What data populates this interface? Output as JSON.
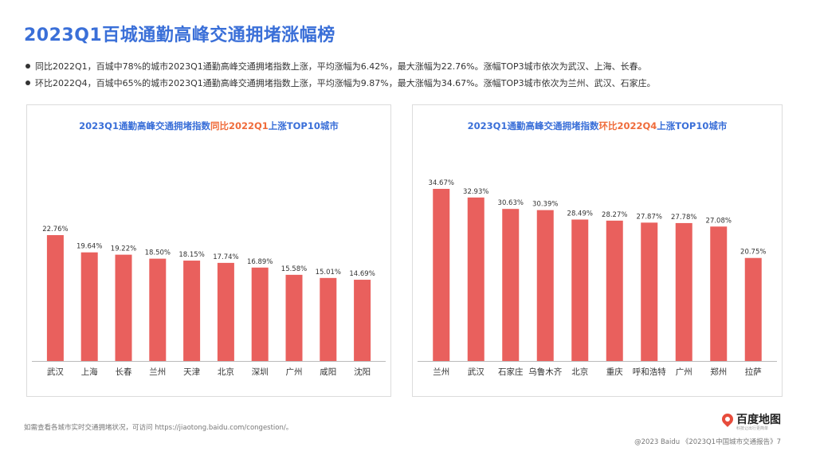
{
  "page": {
    "title": "2023Q1百城通勤高峰交通拥堵涨幅榜",
    "bullets": [
      "同比2022Q1，百城中78%的城市2023Q1通勤高峰交通拥堵指数上涨，平均涨幅为6.42%，最大涨幅为22.76%。涨幅TOP3城市依次为武汉、上海、长春。",
      "环比2022Q4，百城中65%的城市2023Q1通勤高峰交通拥堵指数上涨，平均涨幅为9.87%，最大涨幅为34.67%。涨幅TOP3城市依次为兰州、武汉、石家庄。"
    ],
    "footnote": "如需查看各城市实时交通拥堵状况，可访问 https://jiaotong.baidu.com/congestion/。",
    "copyright": "@2023 Baidu 《2023Q1中国城市交通报告》7",
    "logo": {
      "name": "百度地图",
      "tagline": "科技让出行更简单"
    },
    "colors": {
      "title": "#3a6fd8",
      "highlight": "#ef6b3a",
      "bar": "#e9605d"
    }
  },
  "chart_data": [
    {
      "type": "bar",
      "title_parts": [
        "2023Q1通勤高峰交通拥堵指数",
        "同比2022Q1",
        "上涨TOP10城市"
      ],
      "categories": [
        "武汉",
        "上海",
        "长春",
        "兰州",
        "天津",
        "北京",
        "深圳",
        "广州",
        "咸阳",
        "沈阳"
      ],
      "values": [
        22.76,
        19.64,
        19.22,
        18.5,
        18.15,
        17.74,
        16.89,
        15.58,
        15.01,
        14.69
      ],
      "value_labels": [
        "22.76%",
        "19.64%",
        "19.22%",
        "18.50%",
        "18.15%",
        "17.74%",
        "16.89%",
        "15.58%",
        "15.01%",
        "14.69%"
      ],
      "ylim": [
        0,
        40
      ],
      "grid": false,
      "legend": "none"
    },
    {
      "type": "bar",
      "title_parts": [
        "2023Q1通勤高峰交通拥堵指数",
        "环比2022Q4",
        "上涨TOP10城市"
      ],
      "categories": [
        "兰州",
        "武汉",
        "石家庄",
        "乌鲁木齐",
        "北京",
        "重庆",
        "呼和浩特",
        "广州",
        "郑州",
        "拉萨"
      ],
      "values": [
        34.67,
        32.93,
        30.63,
        30.39,
        28.49,
        28.27,
        27.87,
        27.78,
        27.08,
        20.75
      ],
      "value_labels": [
        "34.67%",
        "32.93%",
        "30.63%",
        "30.39%",
        "28.49%",
        "28.27%",
        "27.87%",
        "27.78%",
        "27.08%",
        "20.75%"
      ],
      "ylim": [
        0,
        40
      ],
      "grid": false,
      "legend": "none"
    }
  ]
}
